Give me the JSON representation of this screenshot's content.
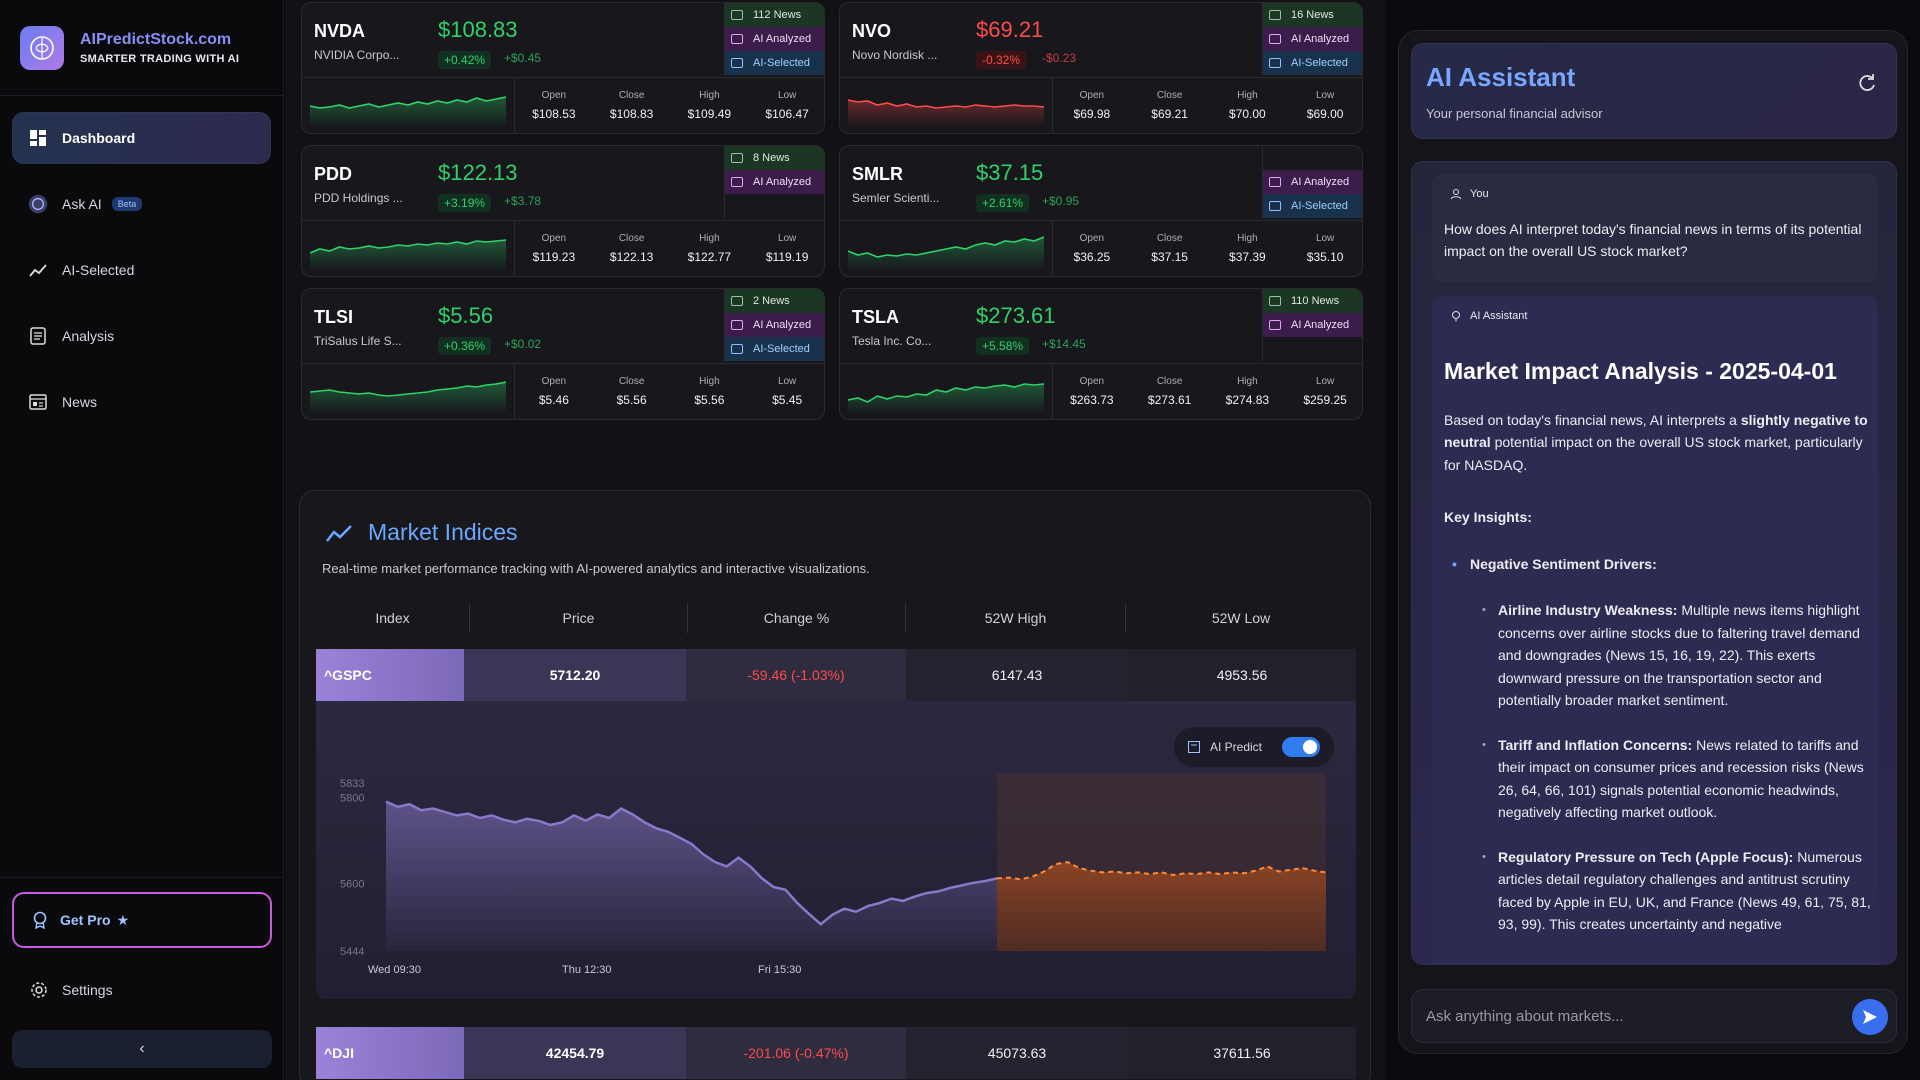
{
  "brand": {
    "name": "AIPredictStock.com",
    "tagline": "SMARTER TRADING WITH AI"
  },
  "nav": [
    {
      "label": "Dashboard",
      "icon": "dashboard-icon",
      "active": true
    },
    {
      "label": "Ask AI",
      "icon": "ai-avatar-icon",
      "badge": "Beta"
    },
    {
      "label": "AI-Selected",
      "icon": "trend-icon"
    },
    {
      "label": "Analysis",
      "icon": "document-icon"
    },
    {
      "label": "News",
      "icon": "news-icon"
    }
  ],
  "sidebar_bottom": {
    "get_pro": "Get Pro",
    "settings": "Settings"
  },
  "ohlc_labels": [
    "Open",
    "Close",
    "High",
    "Low"
  ],
  "stocks": [
    {
      "symbol": "NVDA",
      "name": "NVIDIA Corpo...",
      "price": "$108.83",
      "pct": "+0.42%",
      "change": "+$0.45",
      "dir": "up",
      "news": "112 News",
      "ai_analyzed": "AI Analyzed",
      "ai_selected": "AI-Selected",
      "open": "$108.53",
      "close": "$108.83",
      "high": "$109.49",
      "low": "$106.47"
    },
    {
      "symbol": "NVO",
      "name": "Novo Nordisk ...",
      "price": "$69.21",
      "pct": "-0.32%",
      "change": "-$0.23",
      "dir": "down",
      "news": "16 News",
      "ai_analyzed": "AI Analyzed",
      "ai_selected": "AI-Selected",
      "open": "$69.98",
      "close": "$69.21",
      "high": "$70.00",
      "low": "$69.00"
    },
    {
      "symbol": "PDD",
      "name": "PDD Holdings ...",
      "price": "$122.13",
      "pct": "+3.19%",
      "change": "+$3.78",
      "dir": "up",
      "news": "8 News",
      "ai_analyzed": "AI Analyzed",
      "ai_selected": "",
      "open": "$119.23",
      "close": "$122.13",
      "high": "$122.77",
      "low": "$119.19"
    },
    {
      "symbol": "SMLR",
      "name": "Semler Scienti...",
      "price": "$37.15",
      "pct": "+2.61%",
      "change": "+$0.95",
      "dir": "up",
      "news": "",
      "ai_analyzed": "AI Analyzed",
      "ai_selected": "AI-Selected",
      "open": "$36.25",
      "close": "$37.15",
      "high": "$37.39",
      "low": "$35.10"
    },
    {
      "symbol": "TLSI",
      "name": "TriSalus Life S...",
      "price": "$5.56",
      "pct": "+0.36%",
      "change": "+$0.02",
      "dir": "up",
      "news": "2 News",
      "ai_analyzed": "AI Analyzed",
      "ai_selected": "AI-Selected",
      "open": "$5.46",
      "close": "$5.56",
      "high": "$5.56",
      "low": "$5.45"
    },
    {
      "symbol": "TSLA",
      "name": "Tesla Inc. Co...",
      "price": "$273.61",
      "pct": "+5.58%",
      "change": "+$14.45",
      "dir": "up",
      "news": "110 News",
      "ai_analyzed": "AI Analyzed",
      "ai_selected": "",
      "open": "$263.73",
      "close": "$273.61",
      "high": "$274.83",
      "low": "$259.25"
    }
  ],
  "market": {
    "title": "Market Indices",
    "subtitle": "Real-time market performance tracking with AI-powered analytics and interactive visualizations.",
    "columns": [
      "Index",
      "Price",
      "Change %",
      "52W High",
      "52W Low"
    ],
    "rows": [
      {
        "symbol": "^GSPC",
        "price": "5712.20",
        "change": "-59.46 (-1.03%)",
        "high52": "6147.43",
        "low52": "4953.56"
      },
      {
        "symbol": "^DJI",
        "price": "42454.79",
        "change": "-201.06 (-0.47%)",
        "high52": "45073.63",
        "low52": "37611.56"
      }
    ],
    "ai_predict_label": "AI Predict",
    "ai_predict_on": true
  },
  "chart_data": {
    "type": "area",
    "y_ticks": [
      "5833",
      "5800",
      "5600",
      "5444"
    ],
    "ylim": [
      5444,
      5833
    ],
    "x_ticks": [
      "Wed 09:30",
      "Thu 12:30",
      "Fri 15:30"
    ],
    "series": [
      {
        "values": [
          5790,
          5778,
          5784,
          5770,
          5774,
          5766,
          5758,
          5762,
          5752,
          5758,
          5748,
          5742,
          5750,
          5745,
          5736,
          5742,
          5758,
          5746,
          5760,
          5752,
          5774,
          5760,
          5742,
          5728,
          5720,
          5706,
          5692,
          5668,
          5650,
          5640,
          5660,
          5640,
          5612,
          5592,
          5586,
          5555,
          5530,
          5506,
          5528,
          5542,
          5535,
          5548,
          5555,
          5565,
          5560,
          5570,
          5578,
          5582,
          5590,
          5596,
          5602,
          5606,
          5612
        ]
      },
      {
        "values": [
          5612,
          5614,
          5610,
          5616,
          5628,
          5645,
          5650,
          5636,
          5630,
          5626,
          5628,
          5624,
          5626,
          5622,
          5626,
          5620,
          5624,
          5622,
          5626,
          5622,
          5626,
          5624,
          5630,
          5640,
          5628,
          5632,
          5636,
          5630,
          5626
        ]
      }
    ],
    "colors": {
      "actual": "#8a78c8",
      "predict": "#ff8a3d"
    }
  },
  "assistant": {
    "title": "AI Assistant",
    "subtitle": "Your personal financial advisor",
    "you_label": "You",
    "question": "How does AI interpret today's financial news in terms of its potential impact on the overall US stock market?",
    "ai_label": "AI Assistant",
    "heading": "Market Impact Analysis - 2025-04-01",
    "intro_a": "Based on today's financial news, AI interprets a ",
    "intro_bold1": "slightly negative to neutral",
    "intro_b": " potential impact on the overall US stock market, particularly for NASDAQ.",
    "key_insights": "Key Insights:",
    "section1": "Negative Sentiment Drivers:",
    "items": [
      {
        "bold": "Airline Industry Weakness:",
        "text": " Multiple news items highlight concerns over airline stocks due to faltering travel demand and downgrades (News 15, 16, 19, 22). This exerts downward pressure on the transportation sector and potentially broader market sentiment."
      },
      {
        "bold": "Tariff and Inflation Concerns:",
        "text": " News related to tariffs and their impact on consumer prices and recession risks (News 26, 64, 66, 101) signals potential economic headwinds, negatively affecting market outlook."
      },
      {
        "bold": "Regulatory Pressure on Tech (Apple Focus):",
        "text": "  Numerous articles detail regulatory challenges and antitrust scrutiny faced by Apple in EU, UK, and France (News 49, 61, 75, 81, 93, 99). This creates uncertainty and negative"
      }
    ],
    "input_placeholder": "Ask anything about markets..."
  }
}
